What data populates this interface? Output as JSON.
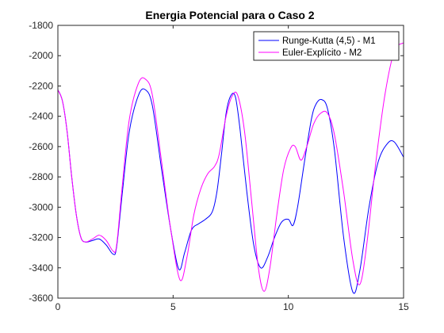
{
  "chart_data": {
    "type": "line",
    "title": "Energia Potencial para o Caso 2",
    "xlabel": "",
    "ylabel": "",
    "xlim": [
      0,
      15
    ],
    "ylim": [
      -3600,
      -1800
    ],
    "xticks": [
      0,
      5,
      10,
      15
    ],
    "yticks": [
      -3600,
      -3400,
      -3200,
      -3000,
      -2800,
      -2600,
      -2400,
      -2200,
      -2000,
      -1800
    ],
    "xtick_labels": [
      "0",
      "5",
      "10",
      "15"
    ],
    "ytick_labels": [
      "-3600",
      "-3400",
      "-3200",
      "-3000",
      "-2800",
      "-2600",
      "-2400",
      "-2200",
      "-2000",
      "-1800"
    ],
    "grid": false,
    "legend_position": "top-right",
    "series": [
      {
        "name": "Runge-Kutta (4,5) - M1",
        "color": "#0000ff",
        "points": [
          [
            0,
            -2225
          ],
          [
            0.2,
            -2300
          ],
          [
            0.4,
            -2500
          ],
          [
            0.6,
            -2800
          ],
          [
            0.8,
            -3050
          ],
          [
            1.0,
            -3200
          ],
          [
            1.2,
            -3230
          ],
          [
            1.5,
            -3220
          ],
          [
            1.8,
            -3210
          ],
          [
            2.1,
            -3250
          ],
          [
            2.4,
            -3310
          ],
          [
            2.55,
            -3260
          ],
          [
            2.8,
            -2900
          ],
          [
            3.1,
            -2500
          ],
          [
            3.5,
            -2260
          ],
          [
            3.8,
            -2225
          ],
          [
            4.1,
            -2330
          ],
          [
            4.5,
            -2750
          ],
          [
            4.9,
            -3150
          ],
          [
            5.25,
            -3410
          ],
          [
            5.5,
            -3300
          ],
          [
            5.8,
            -3150
          ],
          [
            6.1,
            -3110
          ],
          [
            6.4,
            -3080
          ],
          [
            6.7,
            -3030
          ],
          [
            6.9,
            -2900
          ],
          [
            7.1,
            -2650
          ],
          [
            7.3,
            -2380
          ],
          [
            7.5,
            -2265
          ],
          [
            7.7,
            -2270
          ],
          [
            7.9,
            -2480
          ],
          [
            8.2,
            -2900
          ],
          [
            8.5,
            -3250
          ],
          [
            8.8,
            -3400
          ],
          [
            9.1,
            -3330
          ],
          [
            9.4,
            -3200
          ],
          [
            9.7,
            -3100
          ],
          [
            10.0,
            -3080
          ],
          [
            10.2,
            -3120
          ],
          [
            10.4,
            -3000
          ],
          [
            10.7,
            -2700
          ],
          [
            11.0,
            -2420
          ],
          [
            11.2,
            -2320
          ],
          [
            11.45,
            -2290
          ],
          [
            11.7,
            -2350
          ],
          [
            12.0,
            -2620
          ],
          [
            12.4,
            -3200
          ],
          [
            12.8,
            -3560
          ],
          [
            13.1,
            -3420
          ],
          [
            13.5,
            -3000
          ],
          [
            13.9,
            -2700
          ],
          [
            14.3,
            -2580
          ],
          [
            14.6,
            -2570
          ],
          [
            15.0,
            -2670
          ]
        ]
      },
      {
        "name": "Euler-Explícito - M2",
        "color": "#ff00ff",
        "points": [
          [
            0,
            -2225
          ],
          [
            0.2,
            -2300
          ],
          [
            0.4,
            -2500
          ],
          [
            0.6,
            -2800
          ],
          [
            0.8,
            -3050
          ],
          [
            1.0,
            -3200
          ],
          [
            1.2,
            -3230
          ],
          [
            1.5,
            -3210
          ],
          [
            1.8,
            -3185
          ],
          [
            2.1,
            -3220
          ],
          [
            2.4,
            -3290
          ],
          [
            2.55,
            -3250
          ],
          [
            2.8,
            -2850
          ],
          [
            3.1,
            -2420
          ],
          [
            3.5,
            -2180
          ],
          [
            3.8,
            -2155
          ],
          [
            4.1,
            -2260
          ],
          [
            4.5,
            -2700
          ],
          [
            4.9,
            -3150
          ],
          [
            5.3,
            -3480
          ],
          [
            5.6,
            -3330
          ],
          [
            5.9,
            -3050
          ],
          [
            6.2,
            -2880
          ],
          [
            6.5,
            -2780
          ],
          [
            6.8,
            -2730
          ],
          [
            7.0,
            -2650
          ],
          [
            7.3,
            -2400
          ],
          [
            7.55,
            -2270
          ],
          [
            7.8,
            -2260
          ],
          [
            8.1,
            -2500
          ],
          [
            8.4,
            -2950
          ],
          [
            8.7,
            -3400
          ],
          [
            8.95,
            -3555
          ],
          [
            9.2,
            -3400
          ],
          [
            9.5,
            -3050
          ],
          [
            9.8,
            -2750
          ],
          [
            10.1,
            -2610
          ],
          [
            10.3,
            -2600
          ],
          [
            10.55,
            -2690
          ],
          [
            10.8,
            -2600
          ],
          [
            11.1,
            -2450
          ],
          [
            11.4,
            -2380
          ],
          [
            11.7,
            -2380
          ],
          [
            12.0,
            -2520
          ],
          [
            12.4,
            -2900
          ],
          [
            12.8,
            -3350
          ],
          [
            13.1,
            -3510
          ],
          [
            13.4,
            -3250
          ],
          [
            13.8,
            -2700
          ],
          [
            14.2,
            -2250
          ],
          [
            14.6,
            -1970
          ],
          [
            15.0,
            -1915
          ]
        ]
      }
    ]
  }
}
